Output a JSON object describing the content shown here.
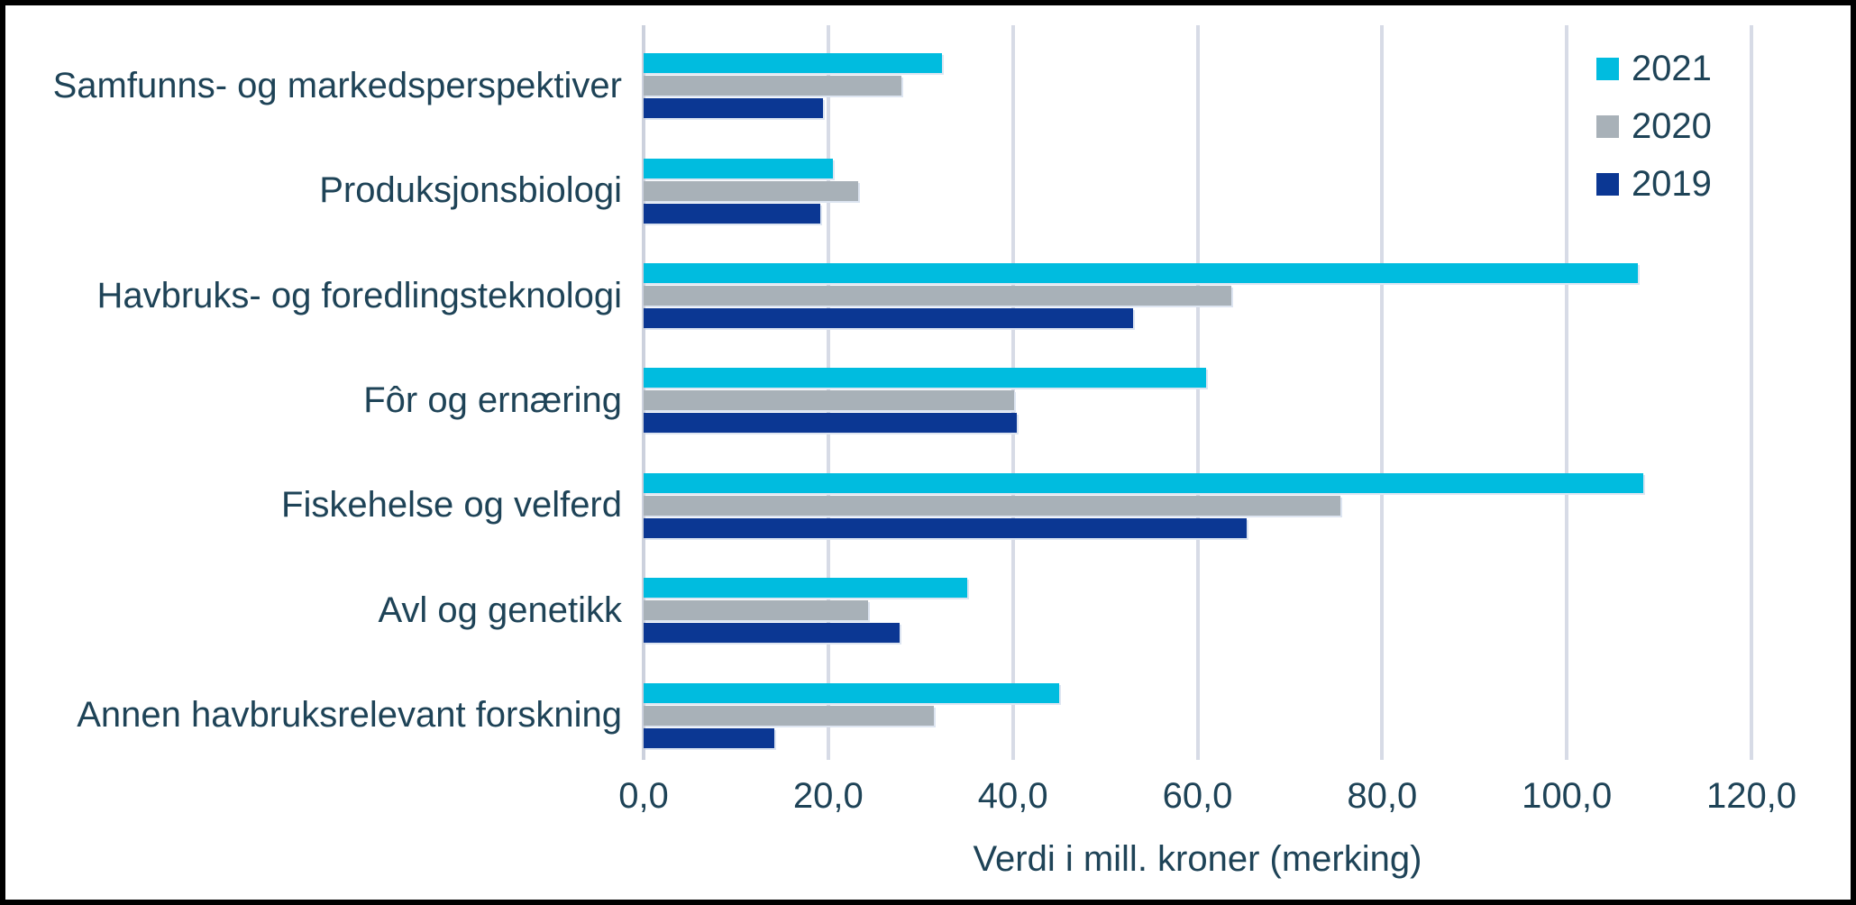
{
  "chart_data": {
    "type": "bar",
    "orientation": "horizontal",
    "title": "",
    "xlabel": "Verdi i mill. kroner (merking)",
    "ylabel": "",
    "xlim": [
      0,
      120
    ],
    "tick_step": 20,
    "x_ticks": [
      "0,0",
      "20,0",
      "40,0",
      "60,0",
      "80,0",
      "100,0",
      "120,0"
    ],
    "tick_values": [
      0,
      20,
      40,
      60,
      80,
      100,
      120
    ],
    "grid": true,
    "legend_position": "top-right",
    "categories": [
      "Samfunns- og markedsperspektiver",
      "Produksjonsbiologi",
      "Havbruks- og foredlingsteknologi",
      "Fôr og ernæring",
      "Fiskehelse og velferd",
      "Avl og genetikk",
      "Annen havbruksrelevant forskning"
    ],
    "series": [
      {
        "name": "2021",
        "color": "#00bcdf",
        "values": [
          32.3,
          20.5,
          107.7,
          60.9,
          108.3,
          35.1,
          45.0
        ]
      },
      {
        "name": "2020",
        "color": "#a8b1b8",
        "values": [
          27.9,
          23.2,
          63.7,
          40.1,
          75.5,
          24.3,
          31.4
        ]
      },
      {
        "name": "2019",
        "color": "#0b3793",
        "values": [
          19.4,
          19.1,
          53.0,
          40.4,
          65.3,
          27.7,
          14.2
        ]
      }
    ]
  },
  "colors": {
    "text": "#1e4357",
    "gridline": "#d7dbe6",
    "axis_line": "#ccd1dd",
    "background": "#ffffff",
    "frame_border": "#000000"
  }
}
